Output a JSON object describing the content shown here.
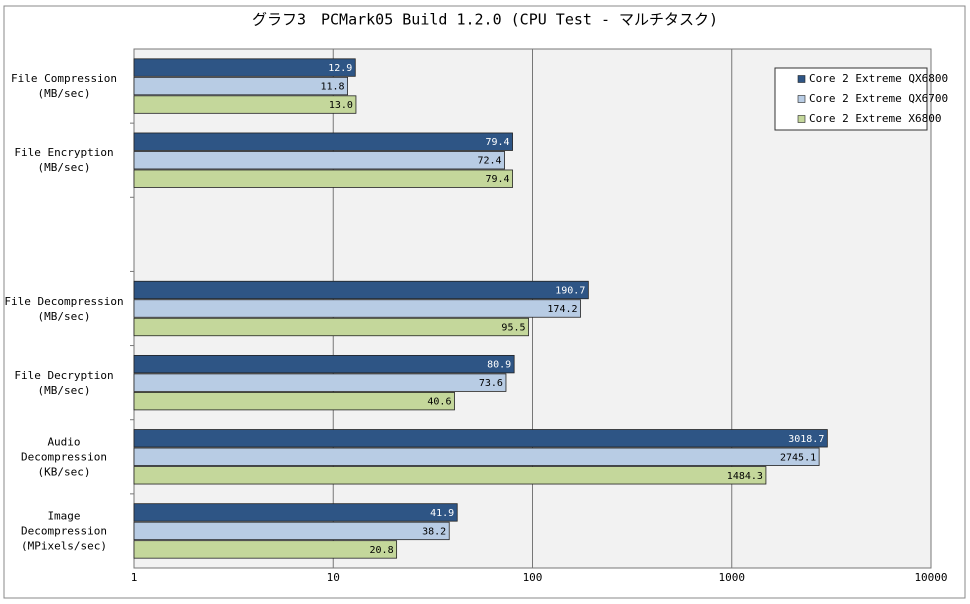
{
  "chart_data": {
    "type": "hbar",
    "title": "グラフ3　PCMark05 Build 1.2.0 (CPU Test - マルチタスク)",
    "categories": [
      "File Compression\n(MB/sec)",
      "File Encryption\n(MB/sec)",
      null,
      "File Decompression\n(MB/sec)",
      "File Decryption\n(MB/sec)",
      "Audio Decompression\n(KB/sec)",
      "Image Decompression\n(MPixels/sec)"
    ],
    "series": [
      {
        "name": "Core 2 Extreme QX6800",
        "color": "#2e5585",
        "values": [
          12.9,
          79.4,
          null,
          190.7,
          80.9,
          3018.7,
          41.9
        ],
        "value_labels": [
          "12.9",
          "79.4",
          null,
          "190.7",
          "80.9",
          "3018.7",
          "41.9"
        ]
      },
      {
        "name": "Core 2 Extreme QX6700",
        "color": "#b8cce4",
        "values": [
          11.8,
          72.4,
          null,
          174.2,
          73.6,
          2745.1,
          38.2
        ],
        "value_labels": [
          "11.8",
          "72.4",
          null,
          "174.2",
          "73.6",
          "2745.1",
          "38.2"
        ]
      },
      {
        "name": "Core 2 Extreme X6800",
        "color": "#c4d79b",
        "values": [
          13.0,
          79.4,
          null,
          95.5,
          40.6,
          1484.3,
          20.8
        ],
        "value_labels": [
          "13.0",
          "79.4",
          null,
          "95.5",
          "40.6",
          "1484.3",
          "20.8"
        ]
      }
    ],
    "xlim": [
      1,
      10000
    ],
    "xticks": [
      1,
      10,
      100,
      1000,
      10000
    ],
    "log_scale": true,
    "grid": true,
    "legend": "top-right"
  }
}
